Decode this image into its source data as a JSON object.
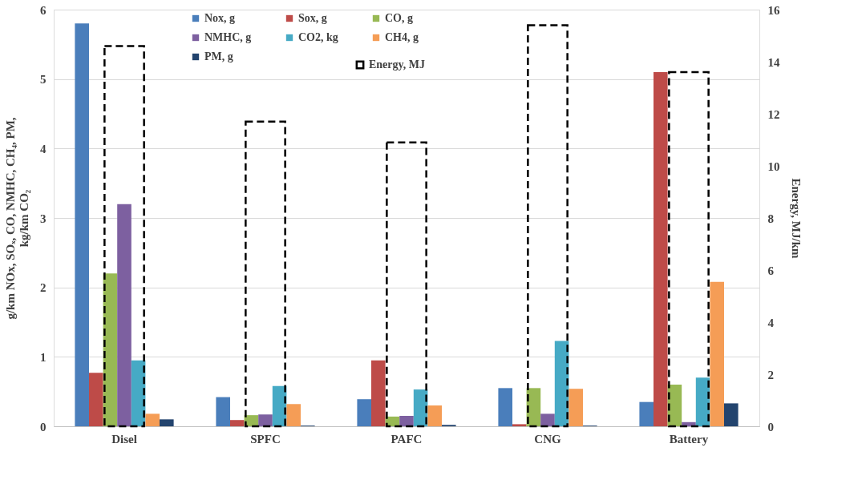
{
  "chart_data": {
    "type": "bar",
    "ylabel": "g/km NOx, SOₓ, CO, NMHC, CH₄, PM, kg/km CO₂",
    "y2label": "Energy, MJ/km",
    "categories": [
      "Disel",
      "SPFC",
      "PAFC",
      "CNG",
      "Battery"
    ],
    "series": [
      {
        "name": "Nox, g",
        "color": "#4a7ebb",
        "values": [
          5.8,
          0.42,
          0.39,
          0.55,
          0.35
        ]
      },
      {
        "name": "Sox, g",
        "color": "#be4b48",
        "values": [
          0.77,
          0.09,
          0.95,
          0.03,
          5.1
        ]
      },
      {
        "name": "CO, g",
        "color": "#98b954",
        "values": [
          2.2,
          0.16,
          0.14,
          0.55,
          0.6
        ]
      },
      {
        "name": "NMHC, g",
        "color": "#7d60a0",
        "values": [
          3.2,
          0.17,
          0.15,
          0.18,
          0.06
        ]
      },
      {
        "name": "CO2, kg",
        "color": "#46aac5",
        "values": [
          0.95,
          0.58,
          0.53,
          1.23,
          0.7
        ]
      },
      {
        "name": "CH4, g",
        "color": "#f59d56",
        "values": [
          0.18,
          0.32,
          0.3,
          0.54,
          2.08
        ]
      },
      {
        "name": "PM, g",
        "color": "#23446e",
        "values": [
          0.1,
          0.01,
          0.02,
          0.01,
          0.33
        ]
      },
      {
        "name": "Energy, MJ",
        "color": "#000000",
        "axis": "y2",
        "line_style": "dashed",
        "values": [
          14.6,
          11.7,
          10.9,
          15.4,
          13.6
        ]
      }
    ],
    "ylim": [
      0,
      6
    ],
    "yticks": [
      0,
      1,
      2,
      3,
      4,
      5,
      6
    ],
    "y2lim": [
      0,
      16
    ],
    "y2ticks": [
      0,
      2,
      4,
      6,
      8,
      10,
      12,
      14,
      16
    ],
    "grid": "y",
    "legend": "top"
  }
}
